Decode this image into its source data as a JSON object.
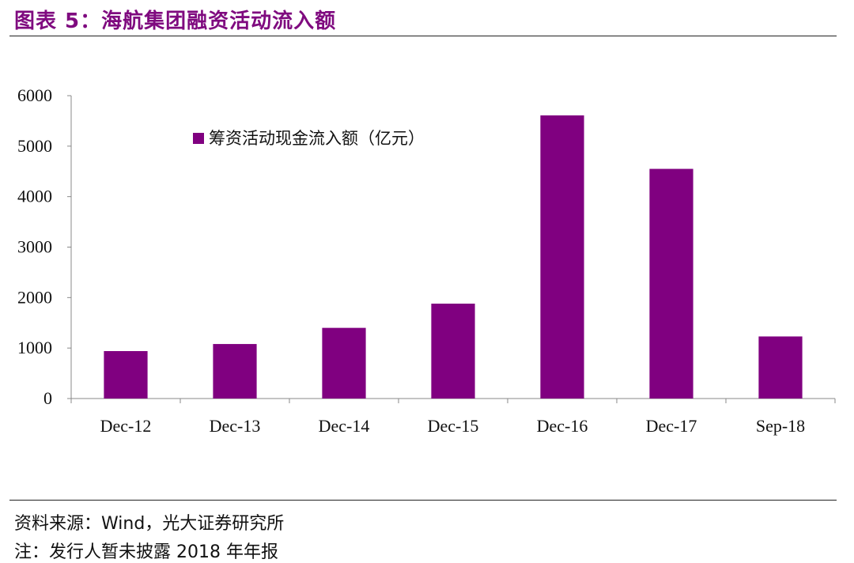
{
  "figure": {
    "title": "图表 5：海航集团融资活动流入额",
    "source": "资料来源：Wind，光大证券研究所",
    "note": "注：发行人暂未披露 2018 年年报"
  },
  "colors": {
    "bar": "#800080",
    "title": "#7f0a7f"
  },
  "chart_data": {
    "type": "bar",
    "categories": [
      "Dec-12",
      "Dec-13",
      "Dec-14",
      "Dec-15",
      "Dec-16",
      "Dec-17",
      "Sep-18"
    ],
    "series": [
      {
        "name": "筹资活动现金流入额（亿元）",
        "values": [
          940,
          1080,
          1400,
          1880,
          5610,
          4550,
          1230
        ]
      }
    ],
    "yticks": [
      0,
      1000,
      2000,
      3000,
      4000,
      5000,
      6000
    ],
    "ylim": [
      0,
      6000
    ],
    "legend": "top-left inside",
    "grid": false
  }
}
